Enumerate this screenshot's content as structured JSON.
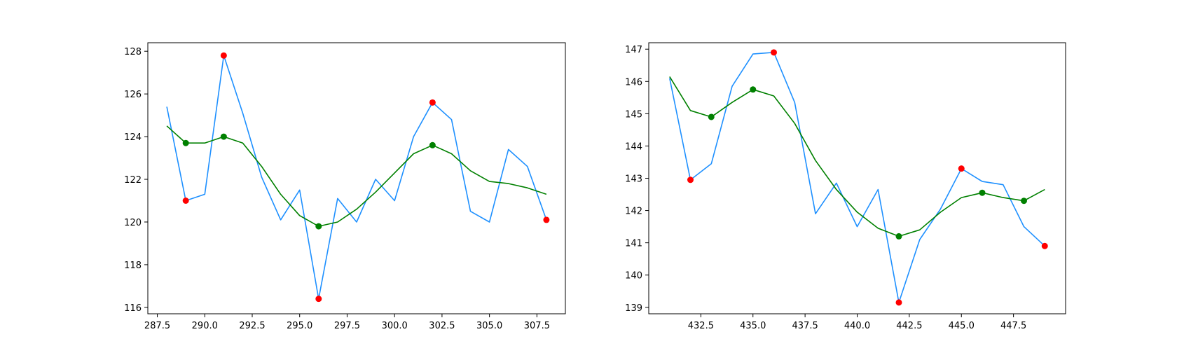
{
  "chart_data": [
    {
      "type": "line",
      "title": "",
      "xlabel": "",
      "ylabel": "",
      "xlim": [
        287,
        309
      ],
      "ylim": [
        115.7,
        128.4
      ],
      "grid": false,
      "xticks": [
        287.5,
        290.0,
        292.5,
        295.0,
        297.5,
        300.0,
        302.5,
        305.0,
        307.5
      ],
      "xtick_labels": [
        "287.5",
        "290.0",
        "292.5",
        "295.0",
        "297.5",
        "300.0",
        "302.5",
        "305.0",
        "307.5"
      ],
      "yticks": [
        116,
        118,
        120,
        122,
        124,
        126,
        128
      ],
      "ytick_labels": [
        "116",
        "118",
        "120",
        "122",
        "124",
        "126",
        "128"
      ],
      "series": [
        {
          "kind": "line",
          "color": "#1e90ff",
          "x": [
            288,
            289,
            290,
            291,
            292,
            293,
            294,
            295,
            296,
            297,
            298,
            299,
            300,
            301,
            302,
            303,
            304,
            305,
            306,
            307,
            308
          ],
          "y": [
            125.4,
            121.0,
            121.3,
            127.8,
            125.1,
            122.1,
            120.1,
            121.5,
            116.4,
            121.1,
            120.0,
            122.0,
            121.0,
            124.0,
            125.6,
            124.8,
            120.5,
            120.0,
            123.4,
            122.6,
            120.1
          ]
        },
        {
          "kind": "line",
          "color": "#008000",
          "x": [
            288,
            289,
            290,
            291,
            292,
            293,
            294,
            295,
            296,
            297,
            298,
            299,
            300,
            301,
            302,
            303,
            304,
            305,
            306,
            307,
            308
          ],
          "y": [
            124.5,
            123.7,
            123.7,
            124.0,
            123.7,
            122.6,
            121.3,
            120.3,
            119.8,
            120.0,
            120.6,
            121.4,
            122.3,
            123.2,
            123.6,
            123.2,
            122.4,
            121.9,
            121.8,
            121.6,
            121.3
          ]
        },
        {
          "kind": "scatter",
          "color": "#ff0000",
          "x": [
            289,
            291,
            296,
            302,
            308
          ],
          "y": [
            121.0,
            127.8,
            116.4,
            125.6,
            120.1
          ]
        },
        {
          "kind": "scatter",
          "color": "#008000",
          "x": [
            289,
            291,
            296,
            302
          ],
          "y": [
            123.7,
            124.0,
            119.8,
            123.6
          ]
        }
      ]
    },
    {
      "type": "line",
      "title": "",
      "xlabel": "",
      "ylabel": "",
      "xlim": [
        430,
        450
      ],
      "ylim": [
        138.8,
        147.2
      ],
      "grid": false,
      "xticks": [
        432.5,
        435.0,
        437.5,
        440.0,
        442.5,
        445.0,
        447.5
      ],
      "xtick_labels": [
        "432.5",
        "435.0",
        "437.5",
        "440.0",
        "442.5",
        "445.0",
        "447.5"
      ],
      "yticks": [
        139,
        140,
        141,
        142,
        143,
        144,
        145,
        146,
        147
      ],
      "ytick_labels": [
        "139",
        "140",
        "141",
        "142",
        "143",
        "144",
        "145",
        "146",
        "147"
      ],
      "series": [
        {
          "kind": "line",
          "color": "#1e90ff",
          "x": [
            431,
            432,
            433,
            434,
            435,
            436,
            437,
            438,
            439,
            440,
            441,
            442,
            443,
            444,
            445,
            446,
            447,
            448,
            449
          ],
          "y": [
            146.1,
            142.95,
            143.45,
            145.85,
            146.85,
            146.9,
            145.35,
            141.9,
            142.85,
            141.5,
            142.65,
            139.15,
            141.1,
            142.05,
            143.3,
            142.9,
            142.8,
            141.5,
            140.9
          ]
        },
        {
          "kind": "line",
          "color": "#008000",
          "x": [
            431,
            432,
            433,
            434,
            435,
            436,
            437,
            438,
            439,
            440,
            441,
            442,
            443,
            444,
            445,
            446,
            447,
            448,
            449
          ],
          "y": [
            146.15,
            145.1,
            144.9,
            145.35,
            145.75,
            145.55,
            144.7,
            143.55,
            142.65,
            141.95,
            141.45,
            141.2,
            141.4,
            141.95,
            142.4,
            142.55,
            142.4,
            142.3,
            142.65
          ]
        },
        {
          "kind": "scatter",
          "color": "#ff0000",
          "x": [
            432,
            436,
            442,
            445,
            449
          ],
          "y": [
            142.95,
            146.9,
            139.15,
            143.3,
            140.9
          ]
        },
        {
          "kind": "scatter",
          "color": "#008000",
          "x": [
            433,
            435,
            442,
            446,
            448
          ],
          "y": [
            144.9,
            145.75,
            141.2,
            142.55,
            142.3
          ]
        }
      ]
    }
  ]
}
